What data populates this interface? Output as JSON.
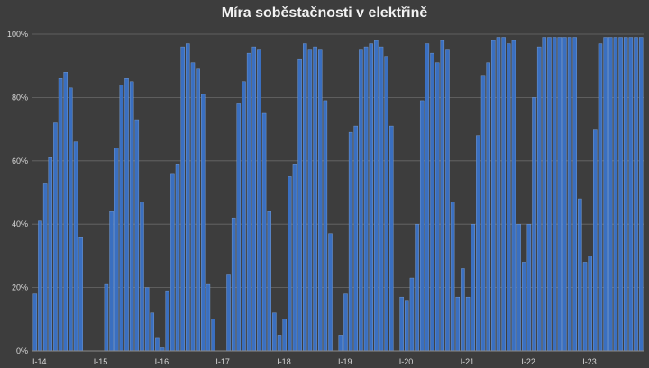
{
  "chart_data": {
    "type": "bar",
    "title": "Míra soběstačnosti v elektřině",
    "xlabel": "",
    "ylabel": "",
    "ylim": [
      0,
      100
    ],
    "grid": true,
    "y_ticks": [
      "0%",
      "20%",
      "40%",
      "60%",
      "80%",
      "100%"
    ],
    "year_labels": [
      "I-14",
      "I-15",
      "I-16",
      "I-17",
      "I-18",
      "I-19",
      "I-20",
      "I-21",
      "I-22",
      "I-23"
    ],
    "bar_color": "#3a6fc0",
    "background": "#3d3d3d",
    "values": [
      18,
      41,
      53,
      61,
      72,
      86,
      88,
      83,
      66,
      36,
      0,
      0,
      0,
      0,
      21,
      44,
      64,
      84,
      86,
      85,
      73,
      47,
      20,
      12,
      4,
      1,
      19,
      56,
      59,
      96,
      97,
      91,
      89,
      81,
      21,
      10,
      0,
      0,
      24,
      42,
      78,
      85,
      94,
      96,
      95,
      75,
      44,
      12,
      5,
      10,
      55,
      59,
      92,
      97,
      95,
      96,
      95,
      79,
      37,
      0,
      5,
      18,
      69,
      71,
      95,
      96,
      97,
      98,
      96,
      93,
      71,
      0,
      17,
      16,
      23,
      40,
      79,
      97,
      94,
      91,
      98,
      95,
      47,
      17,
      26,
      17,
      40,
      68,
      87,
      91,
      98,
      99,
      99,
      97,
      98,
      40,
      28,
      40,
      80,
      96,
      99,
      99,
      99,
      99,
      99,
      99,
      99,
      48,
      28,
      30,
      70,
      97,
      99,
      99,
      99,
      99,
      99,
      99,
      99,
      99
    ]
  }
}
